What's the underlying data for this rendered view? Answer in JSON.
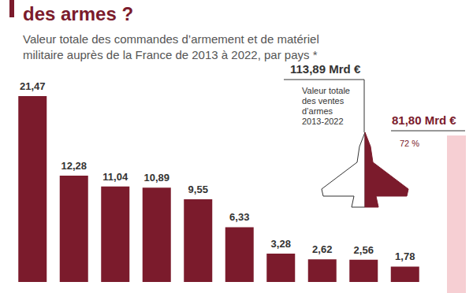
{
  "chart_data": {
    "type": "bar",
    "title": "des armes ?",
    "subtitle": [
      "Valeur totale des commandes d’armement et de matériel",
      "militaire auprès de la France de 2013 à 2022, par pays *"
    ],
    "categories": [
      null,
      null,
      null,
      null,
      null,
      null,
      null,
      null,
      null,
      null
    ],
    "values": [
      21.47,
      12.28,
      11.04,
      10.89,
      9.55,
      6.33,
      3.28,
      2.62,
      2.56,
      1.78
    ],
    "value_labels": [
      "21,47",
      "12,28",
      "11,04",
      "10,89",
      "9,55",
      "6,33",
      "3,28",
      "2,62",
      "2,56",
      "1,78"
    ],
    "color": "#7b1b2c",
    "ylim": [
      0,
      21.47
    ],
    "grid": false,
    "tick_labels": false,
    "data_labels": true,
    "annotations": [
      {
        "text": "113,89 Mrd €"
      },
      {
        "text": "Valeur totale\ndes ventes\nd’armes\n2013-2022"
      },
      {
        "text": "81,80 Mrd €"
      },
      {
        "text": "72 %"
      }
    ]
  }
}
